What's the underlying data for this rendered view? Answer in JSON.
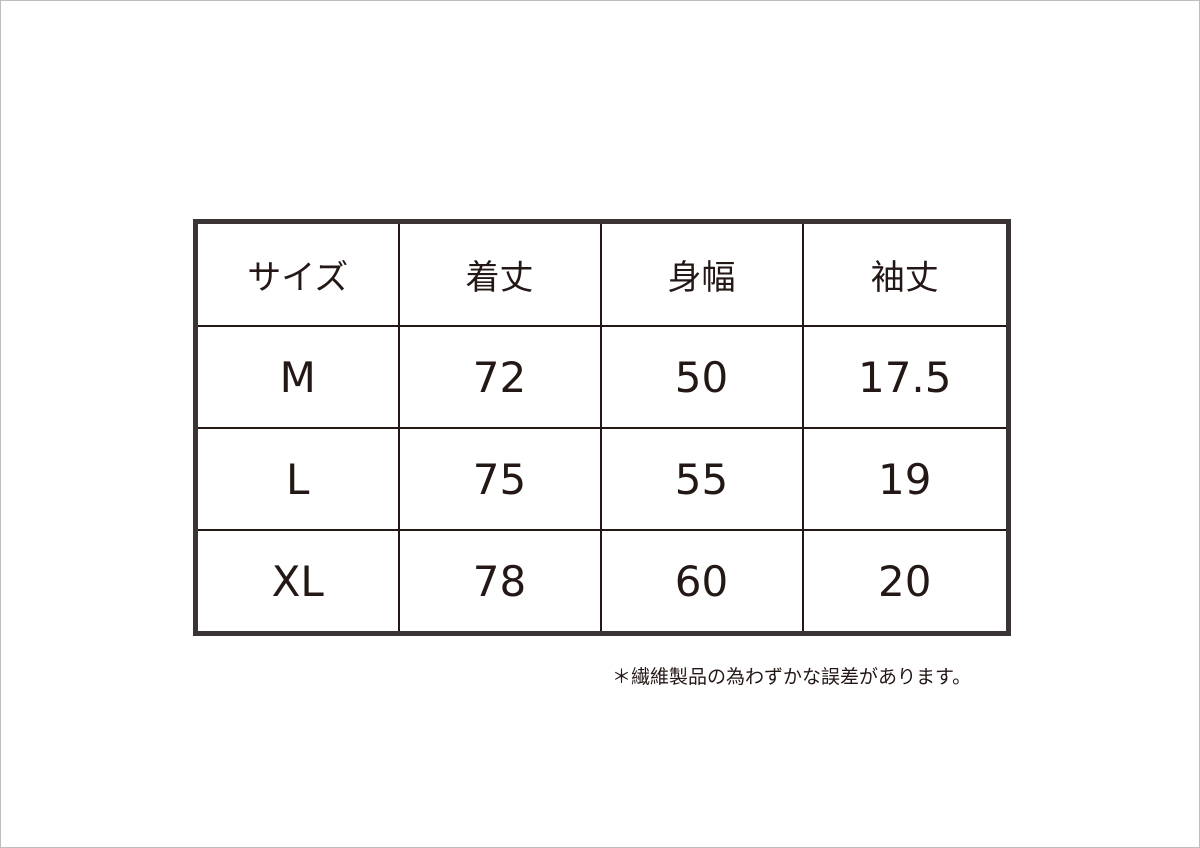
{
  "table": {
    "headers": [
      "サイズ",
      "着丈",
      "身幅",
      "袖丈"
    ],
    "rows": [
      [
        "M",
        "72",
        "50",
        "17.5"
      ],
      [
        "L",
        "75",
        "55",
        "19"
      ],
      [
        "XL",
        "78",
        "60",
        "20"
      ]
    ]
  },
  "note": "＊繊維製品の為わずかな誤差があります。"
}
